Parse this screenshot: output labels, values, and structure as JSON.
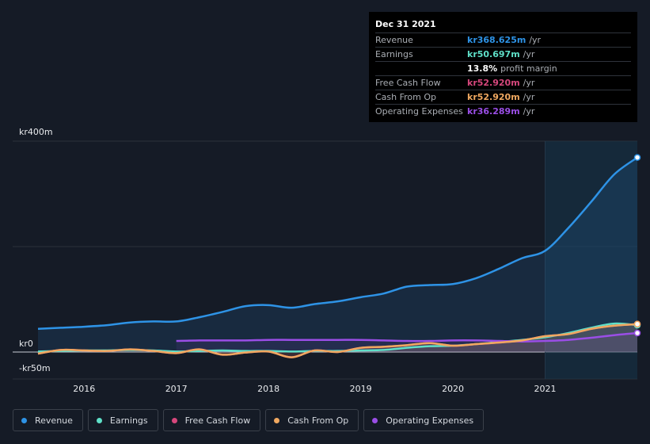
{
  "tooltip": {
    "date": "Dec 31 2021",
    "rows": [
      {
        "label": "Revenue",
        "value": "kr368.625m",
        "unit": "/yr",
        "color": "#2e93e6"
      },
      {
        "label": "Earnings",
        "value": "kr50.697m",
        "unit": "/yr",
        "color": "#5fe0c8"
      },
      {
        "label": "",
        "value": "13.8%",
        "unit": "profit margin",
        "color": "#ffffff"
      },
      {
        "label": "Free Cash Flow",
        "value": "kr52.920m",
        "unit": "/yr",
        "color": "#d6477c"
      },
      {
        "label": "Cash From Op",
        "value": "kr52.920m",
        "unit": "/yr",
        "color": "#f0a860"
      },
      {
        "label": "Operating Expenses",
        "value": "kr36.289m",
        "unit": "/yr",
        "color": "#9a4ee6"
      }
    ]
  },
  "legend": [
    {
      "label": "Revenue",
      "color": "#2e93e6"
    },
    {
      "label": "Earnings",
      "color": "#5fe0c8"
    },
    {
      "label": "Free Cash Flow",
      "color": "#d6477c"
    },
    {
      "label": "Cash From Op",
      "color": "#f0a860"
    },
    {
      "label": "Operating Expenses",
      "color": "#9a4ee6"
    }
  ],
  "chart_data": {
    "type": "area",
    "y_tick_labels": [
      "kr400m",
      "kr0",
      "-kr50m"
    ],
    "y_tick_values": [
      400,
      0,
      -50
    ],
    "ylim": [
      -50,
      400
    ],
    "xlim": [
      2015.5,
      2022.0
    ],
    "x_tick_labels": [
      "2016",
      "2017",
      "2018",
      "2019",
      "2020",
      "2021"
    ],
    "x_tick_values": [
      2016,
      2017,
      2018,
      2019,
      2020,
      2021
    ],
    "highlight_start": 2021.0,
    "grid": "horizontal",
    "legend_position": "bottom",
    "series": [
      {
        "name": "Revenue",
        "color": "#2e93e6",
        "x": [
          2015.5,
          2015.75,
          2016.0,
          2016.25,
          2016.5,
          2016.75,
          2017.0,
          2017.25,
          2017.5,
          2017.75,
          2018.0,
          2018.25,
          2018.5,
          2018.75,
          2019.0,
          2019.25,
          2019.5,
          2019.75,
          2020.0,
          2020.25,
          2020.5,
          2020.75,
          2021.0,
          2021.25,
          2021.5,
          2021.75,
          2022.0
        ],
        "values": [
          44,
          46,
          48,
          51,
          56,
          58,
          58,
          66,
          76,
          87,
          89,
          84,
          91,
          96,
          104,
          111,
          124,
          127,
          129,
          140,
          158,
          178,
          192,
          235,
          285,
          337,
          369
        ]
      },
      {
        "name": "Earnings",
        "color": "#5fe0c8",
        "x": [
          2015.5,
          2015.75,
          2016.0,
          2016.25,
          2016.5,
          2016.75,
          2017.0,
          2017.25,
          2017.5,
          2017.75,
          2018.0,
          2018.25,
          2018.5,
          2018.75,
          2019.0,
          2019.25,
          2019.5,
          2019.75,
          2020.0,
          2020.25,
          2020.5,
          2020.75,
          2021.0,
          2021.25,
          2021.5,
          2021.75,
          2022.0
        ],
        "values": [
          1,
          2,
          3,
          3,
          4,
          3,
          1,
          2,
          3,
          2,
          2,
          1,
          2,
          2,
          3,
          4,
          8,
          11,
          12,
          15,
          19,
          23,
          28,
          36,
          46,
          54,
          51
        ]
      },
      {
        "name": "Free Cash Flow",
        "color": "#d6477c",
        "x": [
          2015.5,
          2015.75,
          2016.0,
          2016.25,
          2016.5,
          2016.75,
          2017.0,
          2017.25,
          2017.5,
          2017.75,
          2018.0,
          2018.25,
          2018.5,
          2018.75,
          2019.0,
          2019.25,
          2019.5,
          2019.75,
          2020.0,
          2020.25,
          2020.5,
          2020.75,
          2021.0,
          2021.25,
          2021.5,
          2021.75,
          2022.0
        ],
        "values": [
          -3,
          4,
          3,
          2,
          5,
          2,
          -2,
          5,
          -5,
          -1,
          1,
          -10,
          3,
          0,
          8,
          10,
          13,
          17,
          12,
          15,
          18,
          22,
          30,
          34,
          44,
          50,
          53
        ]
      },
      {
        "name": "Cash From Op",
        "color": "#f0a860",
        "x": [
          2015.5,
          2015.75,
          2016.0,
          2016.25,
          2016.5,
          2016.75,
          2017.0,
          2017.25,
          2017.5,
          2017.75,
          2018.0,
          2018.25,
          2018.5,
          2018.75,
          2019.0,
          2019.25,
          2019.5,
          2019.75,
          2020.0,
          2020.25,
          2020.5,
          2020.75,
          2021.0,
          2021.25,
          2021.5,
          2021.75,
          2022.0
        ],
        "values": [
          -3,
          4,
          3,
          2,
          5,
          2,
          -2,
          5,
          -5,
          -1,
          1,
          -10,
          3,
          0,
          8,
          10,
          13,
          17,
          12,
          15,
          18,
          22,
          30,
          34,
          44,
          50,
          53
        ]
      },
      {
        "name": "Operating Expenses",
        "color": "#9a4ee6",
        "x": [
          2017.0,
          2017.25,
          2017.5,
          2017.75,
          2018.0,
          2018.25,
          2018.5,
          2018.75,
          2019.0,
          2019.25,
          2019.5,
          2019.75,
          2020.0,
          2020.25,
          2020.5,
          2020.75,
          2021.0,
          2021.25,
          2021.5,
          2021.75,
          2022.0
        ],
        "values": [
          21,
          22,
          22,
          22,
          23,
          23,
          23,
          23,
          23,
          22,
          21,
          21,
          22,
          22,
          21,
          20,
          21,
          23,
          27,
          32,
          36
        ]
      }
    ]
  }
}
